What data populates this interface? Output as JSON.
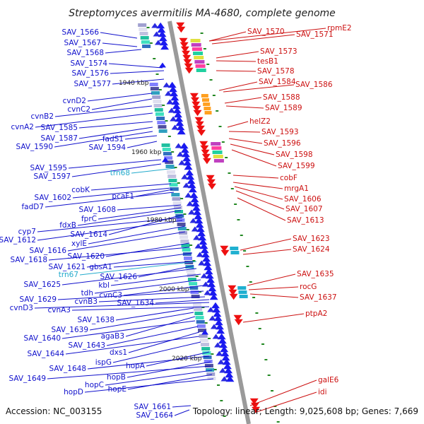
{
  "title": "Streptomyces avermitilis MA-4680, complete genome",
  "accession": "Accession: NC_003155",
  "topology": "Topology: linear; Length: 9,025,608 bp; Genes: 7,669",
  "position_markers": [
    "1940 kbp",
    "1960 kbp",
    "1980 kbp",
    "2000 kbp",
    "2020 kbp"
  ],
  "colors": {
    "left_label": "#1010cc",
    "right_label": "#cc1010",
    "rna_label": "#22aacc",
    "backbone": "#999999",
    "tick": "#228822"
  },
  "left_labels": [
    "SAV_1566",
    "SAV_1567",
    "SAV_1568",
    "SAV_1574",
    "SAV_1576",
    "SAV_1577",
    "cvnD2",
    "cvnC2",
    "cvnB2",
    "cvnA2",
    "SAV_1585",
    "SAV_1587",
    "SAV_1590",
    "fadS1",
    "SAV_1594",
    "SAV_1595",
    "SAV_1597",
    "trn68",
    "cobK",
    "SAV_1602",
    "pcaF1",
    "fadD7",
    "SAV_1608",
    "fprC",
    "fdxB",
    "SAV_1614",
    "cyp7",
    "SAV_1612",
    "xylE",
    "SAV_1616",
    "SAV_1620",
    "SAV_1618",
    "SAV_1621",
    "gbsA1",
    "SAV_1626",
    "trn67",
    "SAV_1625",
    "kbl",
    "tdh",
    "cvnC3",
    "SAV_1629",
    "cvnB3",
    "SAV_1634",
    "cvnD3",
    "cvnA3",
    "SAV_1638",
    "SAV_1639",
    "agaB3",
    "SAV_1640",
    "SAV_1643",
    "dxs1",
    "SAV_1644",
    "ispG",
    "hopA",
    "SAV_1648",
    "hopB",
    "SAV_1649",
    "hopC",
    "hopE",
    "hopD",
    "SAV_1661",
    "SAV_1664"
  ],
  "right_labels": [
    "SAV_1570",
    "rpmE2",
    "SAV_1571",
    "SAV_1573",
    "tesB1",
    "SAV_1578",
    "SAV_1584",
    "SAV_1586",
    "SAV_1588",
    "SAV_1589",
    "helZ2",
    "SAV_1593",
    "SAV_1596",
    "SAV_1598",
    "SAV_1599",
    "cobF",
    "mrgA1",
    "SAV_1606",
    "SAV_1607",
    "SAV_1613",
    "SAV_1623",
    "SAV_1624",
    "SAV_1635",
    "rocG",
    "SAV_1637",
    "ptpA2",
    "galE6",
    "idi"
  ]
}
